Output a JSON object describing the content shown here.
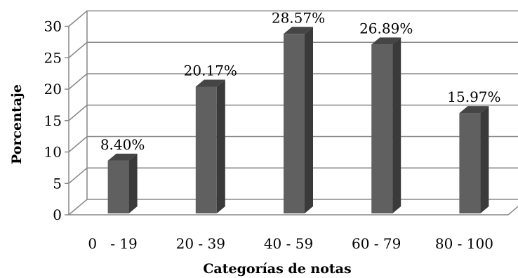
{
  "chart_data": {
    "type": "bar",
    "categories": [
      "0   - 19",
      "20 - 39",
      "40 - 59",
      "60 - 79",
      "80 - 100"
    ],
    "values": [
      8.4,
      20.17,
      28.57,
      26.89,
      15.97
    ],
    "data_labels": [
      "8.40%",
      "20.17%",
      "28.57%",
      "26.89%",
      "15.97%"
    ],
    "xlabel": "Categorías de notas",
    "ylabel": "Porcentaje",
    "ylim": [
      0,
      30
    ],
    "yticks": [
      "0",
      "5",
      "10",
      "15",
      "20",
      "25",
      "30"
    ],
    "grid": true,
    "three_d": true,
    "colors": {
      "bar_front": "#606060",
      "bar_side": "#3a3a3a",
      "bar_top": "#454545",
      "grid": "#888888"
    }
  }
}
